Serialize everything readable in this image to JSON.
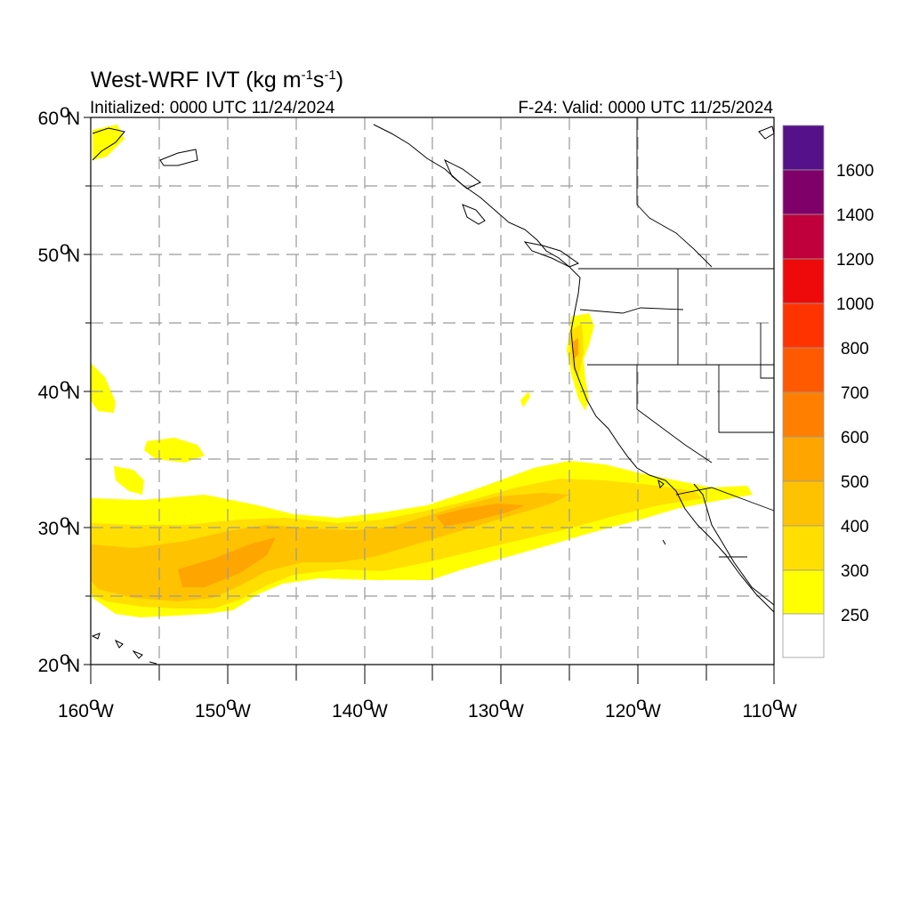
{
  "title": {
    "main": "West-WRF IVT (kg m",
    "sup1": "-1",
    "mid": "s",
    "sup2": "-1",
    "end": ")"
  },
  "initialized": "Initialized: 0000 UTC 11/24/2024",
  "valid": "F-24: Valid: 0000 UTC 11/25/2024",
  "lat_labels": [
    {
      "deg": "60",
      "hem": "N"
    },
    {
      "deg": "50",
      "hem": "N"
    },
    {
      "deg": "40",
      "hem": "N"
    },
    {
      "deg": "30",
      "hem": "N"
    },
    {
      "deg": "20",
      "hem": "N"
    }
  ],
  "lon_labels": [
    {
      "deg": "160",
      "hem": "W"
    },
    {
      "deg": "150",
      "hem": "W"
    },
    {
      "deg": "140",
      "hem": "W"
    },
    {
      "deg": "130",
      "hem": "W"
    },
    {
      "deg": "120",
      "hem": "W"
    },
    {
      "deg": "110",
      "hem": "W"
    }
  ],
  "map_extent": {
    "lon": [
      -160,
      -110
    ],
    "lat": [
      20,
      60
    ]
  },
  "colorbar": {
    "levels": [
      {
        "label": "1600",
        "color": "#55118a"
      },
      {
        "label": "1400",
        "color": "#80006a"
      },
      {
        "label": "1200",
        "color": "#c0003c"
      },
      {
        "label": "1000",
        "color": "#ee0a0a"
      },
      {
        "label": "800",
        "color": "#ff3300"
      },
      {
        "label": "700",
        "color": "#ff5a00"
      },
      {
        "label": "600",
        "color": "#ff8000"
      },
      {
        "label": "500",
        "color": "#ffa500"
      },
      {
        "label": "400",
        "color": "#ffc200"
      },
      {
        "label": "300",
        "color": "#ffde00"
      },
      {
        "label": "250",
        "color": "#ffff00"
      }
    ],
    "bottom_color": "#ffffff",
    "top_color": "#55118a"
  },
  "colors": {
    "ivt_250": "#ffff00",
    "ivt_300": "#ffde00",
    "ivt_400": "#ffc200",
    "ivt_500": "#ffa500",
    "coast": "#000000",
    "grid": "#9a9a9a"
  }
}
